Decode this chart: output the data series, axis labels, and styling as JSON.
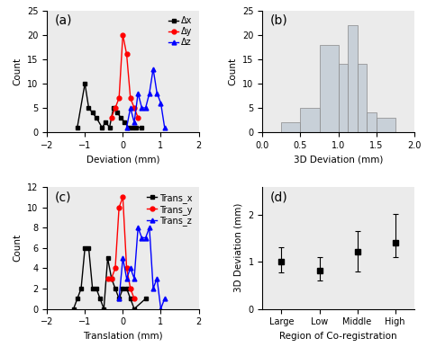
{
  "panel_a": {
    "label": "(a)",
    "xlabel": "Deviation (mm)",
    "ylabel": "Count",
    "xlim": [
      -2,
      2
    ],
    "ylim": [
      0,
      25
    ],
    "yticks": [
      0,
      5,
      10,
      15,
      20,
      25
    ],
    "xticks": [
      -2,
      -1,
      0,
      1,
      2
    ],
    "dx_x": [
      -1.2,
      -1.0,
      -0.9,
      -0.8,
      -0.7,
      -0.55,
      -0.45,
      -0.35,
      -0.25,
      -0.15,
      -0.05,
      0.05,
      0.15,
      0.25,
      0.35,
      0.5
    ],
    "dx_y": [
      1,
      10,
      5,
      4,
      3,
      1,
      2,
      1,
      5,
      4,
      3,
      2,
      1,
      1,
      1,
      1
    ],
    "dy_x": [
      -0.3,
      -0.2,
      -0.1,
      0.0,
      0.1,
      0.2,
      0.3,
      0.4
    ],
    "dy_y": [
      3,
      5,
      7,
      20,
      16,
      7,
      5,
      3
    ],
    "dz_x": [
      0.1,
      0.2,
      0.3,
      0.4,
      0.5,
      0.6,
      0.7,
      0.8,
      0.9,
      1.0,
      1.1
    ],
    "dz_y": [
      1,
      5,
      2,
      8,
      5,
      5,
      8,
      13,
      8,
      6,
      1
    ],
    "legend": [
      "Δx",
      "Δy",
      "Δz"
    ],
    "colors": [
      "black",
      "red",
      "blue"
    ],
    "markers": [
      "s",
      "o",
      "^"
    ]
  },
  "panel_b": {
    "label": "(b)",
    "xlabel": "3D Deviation (mm)",
    "ylabel": "Count",
    "xlim": [
      0.0,
      2.0
    ],
    "ylim": [
      0,
      25
    ],
    "yticks": [
      0,
      5,
      10,
      15,
      20,
      25
    ],
    "xticks": [
      0.0,
      0.5,
      1.0,
      1.5,
      2.0
    ],
    "bin_edges": [
      0.25,
      0.5,
      0.75,
      1.0,
      1.25,
      1.5,
      1.75,
      2.0
    ],
    "bin_counts": [
      2,
      5,
      18,
      14,
      22,
      14,
      4,
      3
    ],
    "bar_color": "#c8d0d8",
    "bar_edgecolor": "#888888"
  },
  "panel_c": {
    "label": "(c)",
    "xlabel": "Translation (mm)",
    "ylabel": "Count",
    "xlim": [
      -2,
      2
    ],
    "ylim": [
      0,
      12
    ],
    "yticks": [
      0,
      2,
      4,
      6,
      8,
      10,
      12
    ],
    "xticks": [
      -2,
      -1,
      0,
      1,
      2
    ],
    "tx_x": [
      -1.3,
      -1.2,
      -1.1,
      -1.0,
      -0.9,
      -0.8,
      -0.7,
      -0.6,
      -0.5,
      -0.4,
      -0.3,
      -0.2,
      -0.1,
      0.0,
      0.1,
      0.2,
      0.3,
      0.6
    ],
    "tx_y": [
      0,
      1,
      2,
      6,
      6,
      2,
      2,
      1,
      0,
      5,
      3,
      2,
      1,
      2,
      2,
      1,
      0,
      1
    ],
    "ty_x": [
      -0.4,
      -0.3,
      -0.2,
      -0.1,
      0.0,
      0.1,
      0.2,
      0.3
    ],
    "ty_y": [
      3,
      3,
      4,
      10,
      11,
      4,
      2,
      1
    ],
    "tz_x": [
      -0.1,
      0.0,
      0.1,
      0.2,
      0.3,
      0.4,
      0.5,
      0.6,
      0.7,
      0.8,
      0.9,
      1.0,
      1.1
    ],
    "tz_y": [
      1,
      5,
      3,
      4,
      3,
      8,
      7,
      7,
      8,
      2,
      3,
      0,
      1
    ],
    "legend": [
      "Trans_x",
      "Trans_y",
      "Trans_z"
    ],
    "colors": [
      "black",
      "red",
      "blue"
    ],
    "markers": [
      "s",
      "o",
      "^"
    ]
  },
  "panel_d": {
    "label": "(d)",
    "xlabel": "Region of Co-registration",
    "ylabel": "3D Deviation (mm)",
    "xlim": [
      -0.5,
      3.5
    ],
    "ylim": [
      0.0,
      2.6
    ],
    "yticks": [
      0,
      1,
      2
    ],
    "categories": [
      "Large",
      "Low",
      "Middle",
      "High"
    ],
    "means": [
      1.0,
      0.82,
      1.22,
      1.42
    ],
    "errors_low": [
      0.22,
      0.22,
      0.42,
      0.32
    ],
    "errors_high": [
      0.32,
      0.28,
      0.45,
      0.6
    ],
    "color": "black",
    "markersize": 5
  },
  "panel_label_fontsize": 10,
  "axis_label_fontsize": 7.5,
  "tick_fontsize": 7,
  "legend_fontsize": 7,
  "line_width": 1.0,
  "marker_size": 3.5
}
